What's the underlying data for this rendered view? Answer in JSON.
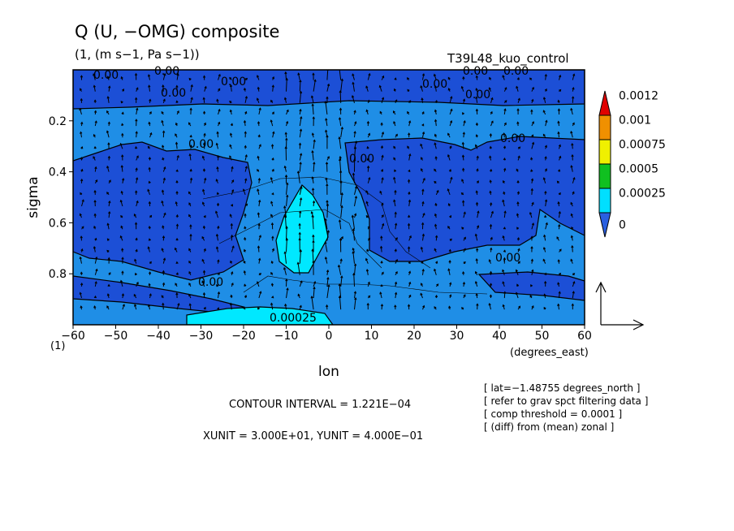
{
  "chart_data": {
    "type": "heatmap",
    "title": "Q (U, −OMG) composite",
    "units": "(1, (m s−1, Pa s−1))",
    "run_label": "T39L48_kuo_control",
    "xlabel": "lon",
    "xunit_label": "(degrees_east)",
    "ylabel": "sigma",
    "yunit_label": "(1)",
    "xlim": [
      -60,
      60
    ],
    "ylim": [
      1.0,
      0.0
    ],
    "x_ticks": [
      -60,
      -50,
      -40,
      -30,
      -20,
      -10,
      0,
      10,
      20,
      30,
      40,
      50,
      60
    ],
    "y_ticks": [
      0.2,
      0.4,
      0.6,
      0.8
    ],
    "x_tick_labels": [
      "−60",
      "−50",
      "−40",
      "−30",
      "−20",
      "−10",
      "0",
      "10",
      "20",
      "30",
      "40",
      "50",
      "60"
    ],
    "y_tick_labels": [
      "0.2",
      "0.4",
      "0.6",
      "0.8"
    ],
    "colorbar": {
      "levels": [
        "0",
        "0.00025",
        "0.0005",
        "0.00075",
        "0.001",
        "0.0012"
      ],
      "colors": [
        "#2a5fe0",
        "#00dfff",
        "#10c020",
        "#f0f000",
        "#f09000",
        "#e00000"
      ]
    },
    "fill_colors": {
      "low": "#1c4fd6",
      "base": "#1f8ee6",
      "mid": "#00e8ff"
    },
    "contour_labels": [
      "0.00",
      "0.00",
      "0.00",
      "0.00",
      "0.00",
      "0.00",
      "0.00",
      "0.00",
      "0.00",
      "0.00",
      "0.00",
      "0.00025",
      "0.00",
      "0.00"
    ],
    "footer": {
      "contour_interval": "CONTOUR INTERVAL = 1.221E−04",
      "units": "XUNIT = 3.000E+01, YUNIT = 4.000E−01"
    },
    "notes": [
      "[ lat=−1.48755 degrees_north ]",
      "[ refer to grav spct filtering data ]",
      "[ comp threshold = 0.0001 ]",
      "[ (diff) from (mean) zonal ]"
    ],
    "grid": false
  }
}
